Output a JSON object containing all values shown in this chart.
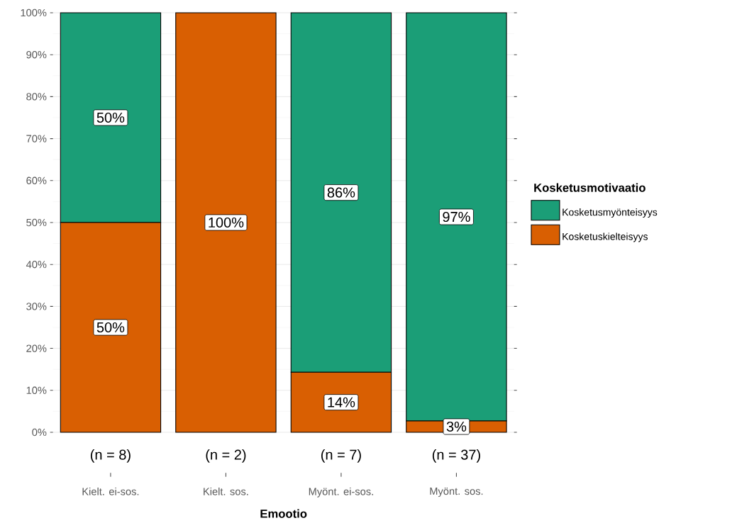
{
  "chart_data": {
    "type": "bar",
    "stacked": true,
    "xlabel": "Emootio",
    "legend_title": "Kosketusmotivaatio",
    "categories": [
      "Kielt. ei-sos.",
      "Kielt. sos.",
      "Myönt. ei-sos.",
      "Myönt. sos."
    ],
    "series": [
      {
        "name": "Kosketuskielteisyys",
        "color": "#d95f02",
        "values": [
          50,
          100,
          14.3,
          2.7
        ],
        "value_labels": [
          "50%",
          "100%",
          "14%",
          "3%"
        ]
      },
      {
        "name": "Kosketusmyönteisyys",
        "color": "#1b9e77",
        "values": [
          50,
          0,
          85.7,
          97.3
        ],
        "value_labels": [
          "50%",
          null,
          "86%",
          "97%"
        ]
      }
    ],
    "ylim": [
      0,
      100
    ],
    "yticks": [
      {
        "value": 0,
        "label": "0%"
      },
      {
        "value": 10,
        "label": "10%"
      },
      {
        "value": 20,
        "label": "20%"
      },
      {
        "value": 30,
        "label": "30%"
      },
      {
        "value": 40,
        "label": "40%"
      },
      {
        "value": 50,
        "label": "50%"
      },
      {
        "value": 60,
        "label": "60%"
      },
      {
        "value": 70,
        "label": "70%"
      },
      {
        "value": 80,
        "label": "80%"
      },
      {
        "value": 90,
        "label": "90%"
      },
      {
        "value": 100,
        "label": "100%"
      }
    ],
    "grid": "y",
    "legend": "right",
    "annotations": [
      "(n = 8)",
      "(n = 2)",
      "(n = 7)",
      "(n = 37)"
    ]
  }
}
